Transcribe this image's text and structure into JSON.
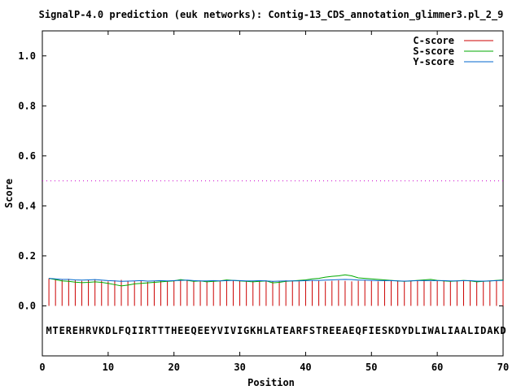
{
  "chart_data": {
    "type": "line",
    "title": "SignalP-4.0 prediction (euk networks): Contig-13_CDS_annotation_glimmer3.pl_2_9",
    "xlabel": "Position",
    "ylabel": "Score",
    "xlim": [
      0,
      70
    ],
    "ylim": [
      -0.2,
      1.1
    ],
    "xticks": [
      0,
      10,
      20,
      30,
      40,
      50,
      60,
      70
    ],
    "yticks": [
      0.0,
      0.2,
      0.4,
      0.6,
      0.8,
      1.0
    ],
    "xtick_labels": [
      "0",
      "10",
      "20",
      "30",
      "40",
      "50",
      "60",
      "70"
    ],
    "ytick_labels": [
      "0.0",
      "0.2",
      "0.4",
      "0.6",
      "0.8",
      "1.0"
    ],
    "threshold": 0.5,
    "sequence": "MTEREHRVKDLFQIIRTTTHEEQEEYVIVIGKHLATEARFSTREEAEQFIESKDYDLIWALIAALIDAKD",
    "legend_position": "top-right",
    "series": [
      {
        "name": "C-score",
        "color": "#cc0000",
        "style": "impulse",
        "x": [
          1,
          2,
          3,
          4,
          5,
          6,
          7,
          8,
          9,
          10,
          11,
          12,
          13,
          14,
          15,
          16,
          17,
          18,
          19,
          20,
          21,
          22,
          23,
          24,
          25,
          26,
          27,
          28,
          29,
          30,
          31,
          32,
          33,
          34,
          35,
          36,
          37,
          38,
          39,
          40,
          41,
          42,
          43,
          44,
          45,
          46,
          47,
          48,
          49,
          50,
          51,
          52,
          53,
          54,
          55,
          56,
          57,
          58,
          59,
          60,
          61,
          62,
          63,
          64,
          65,
          66,
          67,
          68,
          69,
          70
        ],
        "values": [
          0.11,
          0.106,
          0.104,
          0.108,
          0.102,
          0.1,
          0.104,
          0.106,
          0.1,
          0.098,
          0.102,
          0.104,
          0.098,
          0.1,
          0.102,
          0.096,
          0.1,
          0.102,
          0.098,
          0.1,
          0.102,
          0.104,
          0.1,
          0.098,
          0.1,
          0.102,
          0.098,
          0.1,
          0.102,
          0.1,
          0.098,
          0.1,
          0.102,
          0.1,
          0.098,
          0.1,
          0.102,
          0.1,
          0.098,
          0.1,
          0.102,
          0.1,
          0.098,
          0.1,
          0.102,
          0.1,
          0.098,
          0.1,
          0.102,
          0.1,
          0.098,
          0.1,
          0.102,
          0.1,
          0.098,
          0.1,
          0.102,
          0.1,
          0.098,
          0.1,
          0.102,
          0.1,
          0.098,
          0.1,
          0.102,
          0.1,
          0.098,
          0.1,
          0.102,
          0.1
        ]
      },
      {
        "name": "S-score",
        "color": "#00aa00",
        "style": "line",
        "x": [
          1,
          2,
          3,
          4,
          5,
          6,
          7,
          8,
          9,
          10,
          11,
          12,
          13,
          14,
          15,
          16,
          17,
          18,
          19,
          20,
          21,
          22,
          23,
          24,
          25,
          26,
          27,
          28,
          29,
          30,
          31,
          32,
          33,
          34,
          35,
          36,
          37,
          38,
          39,
          40,
          41,
          42,
          43,
          44,
          45,
          46,
          47,
          48,
          49,
          50,
          51,
          52,
          53,
          54,
          55,
          56,
          57,
          58,
          59,
          60,
          61,
          62,
          63,
          64,
          65,
          66,
          67,
          68,
          69,
          70
        ],
        "values": [
          0.11,
          0.105,
          0.1,
          0.098,
          0.095,
          0.093,
          0.094,
          0.096,
          0.094,
          0.09,
          0.085,
          0.08,
          0.083,
          0.088,
          0.09,
          0.092,
          0.094,
          0.096,
          0.098,
          0.1,
          0.105,
          0.102,
          0.098,
          0.1,
          0.096,
          0.098,
          0.1,
          0.104,
          0.102,
          0.1,
          0.098,
          0.096,
          0.098,
          0.1,
          0.092,
          0.094,
          0.098,
          0.1,
          0.102,
          0.104,
          0.108,
          0.11,
          0.115,
          0.118,
          0.12,
          0.124,
          0.12,
          0.112,
          0.11,
          0.108,
          0.106,
          0.104,
          0.102,
          0.1,
          0.098,
          0.1,
          0.102,
          0.104,
          0.106,
          0.102,
          0.1,
          0.098,
          0.1,
          0.102,
          0.1,
          0.096,
          0.098,
          0.1,
          0.102,
          0.104
        ]
      },
      {
        "name": "Y-score",
        "color": "#0066cc",
        "style": "line",
        "x": [
          1,
          2,
          3,
          4,
          5,
          6,
          7,
          8,
          9,
          10,
          11,
          12,
          13,
          14,
          15,
          16,
          17,
          18,
          19,
          20,
          21,
          22,
          23,
          24,
          25,
          26,
          27,
          28,
          29,
          30,
          31,
          32,
          33,
          34,
          35,
          36,
          37,
          38,
          39,
          40,
          41,
          42,
          43,
          44,
          45,
          46,
          47,
          48,
          49,
          50,
          51,
          52,
          53,
          54,
          55,
          56,
          57,
          58,
          59,
          60,
          61,
          62,
          63,
          64,
          65,
          66,
          67,
          68,
          69,
          70
        ],
        "values": [
          0.11,
          0.108,
          0.106,
          0.106,
          0.104,
          0.103,
          0.104,
          0.105,
          0.103,
          0.101,
          0.1,
          0.098,
          0.099,
          0.1,
          0.101,
          0.099,
          0.1,
          0.101,
          0.1,
          0.101,
          0.102,
          0.103,
          0.101,
          0.1,
          0.1,
          0.101,
          0.1,
          0.101,
          0.102,
          0.101,
          0.1,
          0.1,
          0.101,
          0.1,
          0.098,
          0.099,
          0.1,
          0.1,
          0.1,
          0.101,
          0.102,
          0.102,
          0.103,
          0.104,
          0.105,
          0.106,
          0.105,
          0.103,
          0.103,
          0.102,
          0.101,
          0.101,
          0.101,
          0.1,
          0.099,
          0.1,
          0.101,
          0.101,
          0.101,
          0.101,
          0.101,
          0.1,
          0.1,
          0.101,
          0.101,
          0.099,
          0.099,
          0.1,
          0.101,
          0.102
        ]
      }
    ]
  }
}
